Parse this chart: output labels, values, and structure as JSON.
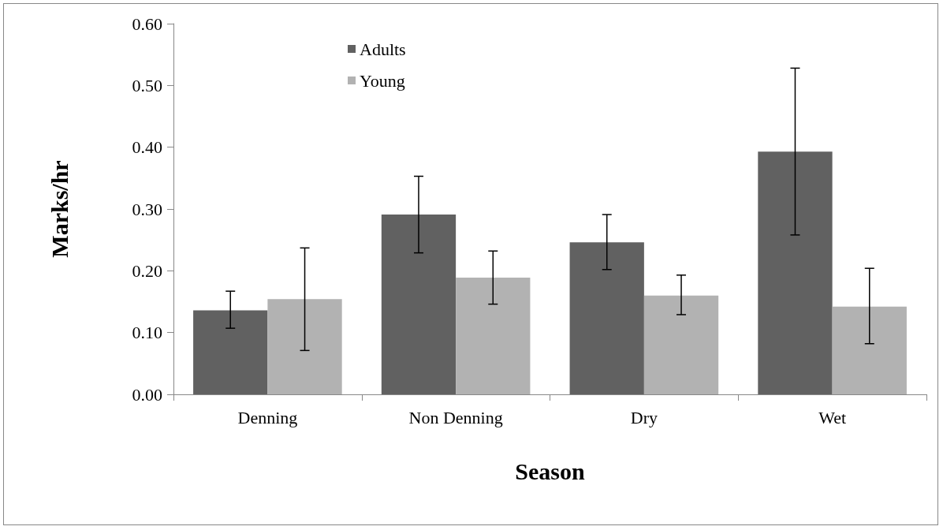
{
  "chart_data": {
    "type": "bar",
    "xlabel": "Season",
    "ylabel": "Marks/hr",
    "categories": [
      "Denning",
      "Non Denning",
      "Dry",
      "Wet"
    ],
    "series": [
      {
        "name": "Adults",
        "color": "#616161",
        "values": [
          0.136,
          0.291,
          0.246,
          0.393
        ],
        "errors": [
          [
            0.107,
            0.167
          ],
          [
            0.229,
            0.353
          ],
          [
            0.202,
            0.291
          ],
          [
            0.258,
            0.528
          ]
        ]
      },
      {
        "name": "Young",
        "color": "#b2b2b2",
        "values": [
          0.154,
          0.189,
          0.16,
          0.142
        ],
        "errors": [
          [
            0.071,
            0.237
          ],
          [
            0.146,
            0.232
          ],
          [
            0.129,
            0.193
          ],
          [
            0.082,
            0.204
          ]
        ]
      }
    ],
    "ylim": [
      0,
      0.6
    ],
    "yticks": [
      {
        "value": 0,
        "label": "0.00"
      },
      {
        "value": 0.1,
        "label": "0.10"
      },
      {
        "value": 0.2,
        "label": "0.20"
      },
      {
        "value": 0.3,
        "label": "0.30"
      },
      {
        "value": 0.4,
        "label": "0.40"
      },
      {
        "value": 0.5,
        "label": "0.50"
      },
      {
        "value": 0.6,
        "label": "0.60"
      }
    ],
    "grid": false,
    "legend": "top"
  }
}
